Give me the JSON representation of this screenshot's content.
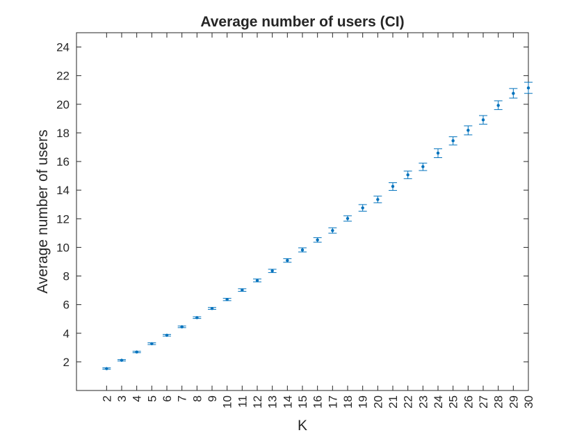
{
  "chart_data": {
    "type": "errorbar",
    "title": "Average number of users (CI)",
    "xlabel": "K",
    "ylabel": "Average number of users",
    "ylim": [
      0,
      25
    ],
    "xlim": [
      0,
      30
    ],
    "yticks": [
      2,
      4,
      6,
      8,
      10,
      12,
      14,
      16,
      18,
      20,
      22,
      24
    ],
    "xticks": [
      2,
      3,
      4,
      5,
      6,
      7,
      8,
      9,
      10,
      11,
      12,
      13,
      14,
      15,
      16,
      17,
      18,
      19,
      20,
      21,
      22,
      23,
      24,
      25,
      26,
      27,
      28,
      29,
      30
    ],
    "grid": false,
    "color": "#0072BD",
    "series": [
      {
        "x": [
          2,
          3,
          4,
          5,
          6,
          7,
          8,
          9,
          10,
          11,
          12,
          13,
          14,
          15,
          16,
          17,
          18,
          19,
          20,
          21,
          22,
          23,
          24,
          25,
          26,
          27,
          28,
          29,
          30
        ],
        "y": [
          1.53,
          2.11,
          2.69,
          3.27,
          3.86,
          4.45,
          5.09,
          5.73,
          6.36,
          7.02,
          7.69,
          8.36,
          9.09,
          9.82,
          10.52,
          11.18,
          12.02,
          12.76,
          13.35,
          14.26,
          15.07,
          15.64,
          16.59,
          17.45,
          18.18,
          18.91,
          19.92,
          20.76,
          21.14
        ],
        "lower": [
          1.49,
          2.06,
          2.64,
          3.21,
          3.8,
          4.39,
          5.03,
          5.67,
          6.28,
          6.93,
          7.59,
          8.24,
          8.96,
          9.68,
          10.36,
          10.99,
          11.83,
          12.53,
          13.12,
          13.98,
          14.8,
          15.37,
          16.27,
          17.16,
          17.86,
          18.61,
          19.63,
          20.43,
          20.76
        ],
        "upper": [
          1.58,
          2.16,
          2.74,
          3.33,
          3.92,
          4.51,
          5.15,
          5.8,
          6.44,
          7.11,
          7.79,
          8.47,
          9.21,
          9.97,
          10.68,
          11.37,
          12.21,
          12.99,
          13.58,
          14.52,
          15.33,
          15.89,
          16.89,
          17.73,
          18.49,
          19.21,
          20.24,
          21.1,
          21.54
        ]
      }
    ]
  }
}
